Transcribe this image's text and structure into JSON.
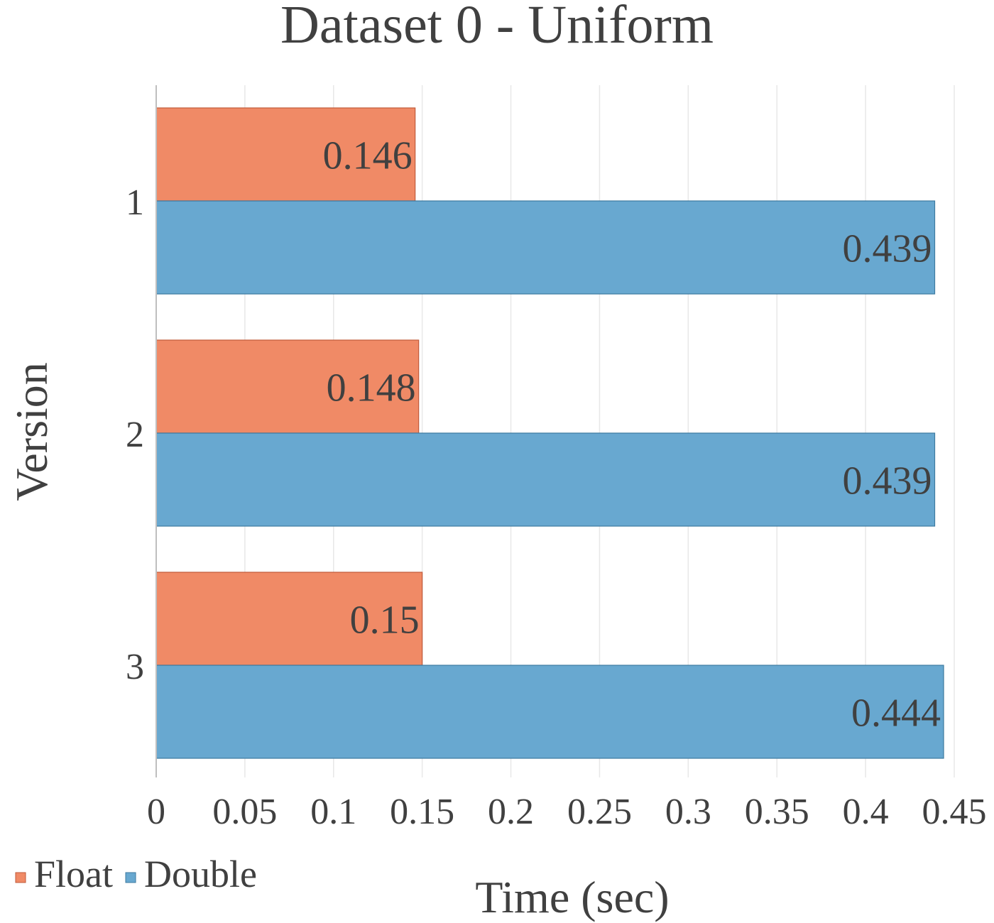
{
  "chart_data": {
    "type": "bar",
    "orientation": "horizontal",
    "title": "Dataset 0 - Uniform",
    "xlabel": "Time (sec)",
    "ylabel": "Version",
    "categories": [
      "1",
      "2",
      "3"
    ],
    "series": [
      {
        "name": "Float",
        "color": "#F08A66",
        "border": "#C05A3A",
        "values": [
          0.146,
          0.148,
          0.15
        ],
        "labels": [
          "0.146",
          "0.148",
          "0.15"
        ]
      },
      {
        "name": "Double",
        "color": "#68A8D0",
        "border": "#3D7AA0",
        "values": [
          0.439,
          0.439,
          0.444
        ],
        "labels": [
          "0.439",
          "0.439",
          "0.444"
        ]
      }
    ],
    "xlim": [
      0,
      0.45
    ],
    "xticks": [
      "0",
      "0.05",
      "0.1",
      "0.15",
      "0.2",
      "0.25",
      "0.3",
      "0.35",
      "0.4",
      "0.45"
    ],
    "grid": true,
    "legend_position": "bottom-left"
  }
}
